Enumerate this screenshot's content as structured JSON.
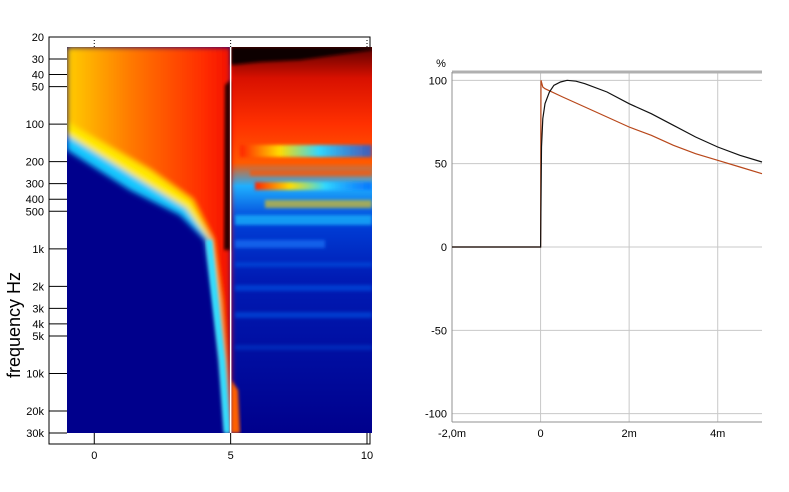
{
  "chart_data": [
    {
      "type": "heatmap",
      "ylabel": "frequency   Hz",
      "y_scale": "log",
      "ylim": [
        20,
        30000
      ],
      "xlim": [
        -1,
        10
      ],
      "x_ticks": [
        0,
        5,
        10
      ],
      "x_tick_labels": [
        "0",
        "5",
        "10"
      ],
      "y_ticks": [
        20,
        30,
        40,
        50,
        100,
        200,
        300,
        400,
        500,
        1000,
        2000,
        3000,
        4000,
        5000,
        10000,
        20000,
        30000
      ],
      "y_tick_labels": [
        "20",
        "30",
        "40",
        "50",
        "100",
        "200",
        "300",
        "400",
        "500",
        "1k",
        "2k",
        "3k",
        "4k",
        "5k",
        "10k",
        "20k",
        "30k"
      ],
      "marker_x": 5,
      "colormap": "jet",
      "grid": false
    },
    {
      "type": "line",
      "ylabel": "%",
      "ylim": [
        -105,
        105
      ],
      "xlim": [
        -2,
        5
      ],
      "x_ticks": [
        -2,
        0,
        2,
        4
      ],
      "x_tick_labels": [
        "-2,0m",
        "0",
        "2m",
        "4m"
      ],
      "y_ticks": [
        -100,
        -50,
        0,
        50,
        100
      ],
      "y_tick_labels": [
        "-100",
        "-50",
        "0",
        "50",
        "100"
      ],
      "grid": true,
      "series": [
        {
          "color": "#111111",
          "x": [
            -2.0,
            -0.02,
            0.0,
            0.02,
            0.05,
            0.1,
            0.2,
            0.3,
            0.45,
            0.6,
            0.8,
            1.0,
            1.5,
            2.0,
            2.5,
            3.0,
            3.5,
            4.0,
            4.5,
            5.0
          ],
          "y": [
            0,
            0,
            0,
            60,
            77,
            86,
            93,
            97,
            99,
            100,
            99.5,
            98,
            93,
            86,
            80,
            73,
            66,
            60,
            55,
            51
          ]
        },
        {
          "color": "#b8471a",
          "x": [
            -2.0,
            -0.02,
            0.0,
            0.01,
            0.05,
            0.1,
            0.5,
            1.0,
            1.5,
            2.0,
            2.5,
            3.0,
            3.5,
            4.0,
            4.5,
            5.0
          ],
          "y": [
            0,
            0,
            0,
            100,
            96,
            95,
            90,
            84,
            78,
            72,
            67,
            61,
            56,
            52,
            48,
            44
          ]
        }
      ]
    }
  ]
}
